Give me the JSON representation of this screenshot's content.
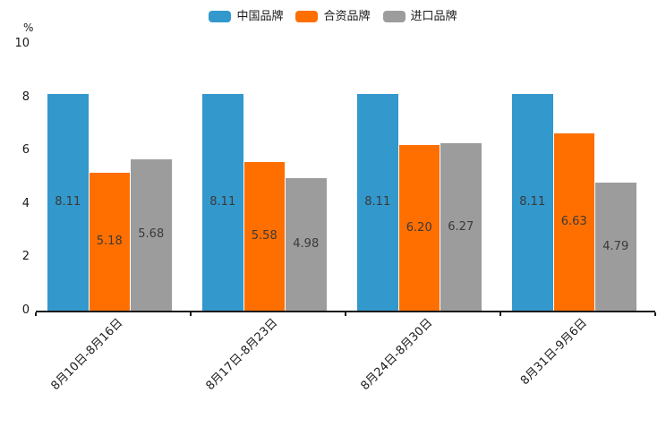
{
  "chart_data": {
    "type": "bar",
    "title": "",
    "ylabel": "%",
    "xlabel": "",
    "ylim": [
      0,
      10
    ],
    "yticks": [
      "0",
      "2",
      "4",
      "6",
      "8",
      "10"
    ],
    "grid": false,
    "legend_position": "top",
    "categories": [
      "8月10日-8月16日",
      "8月17日-8月23日",
      "8月24日-8月30日",
      "8月31日-9月6日"
    ],
    "series": [
      {
        "name": "中国品牌",
        "color": "#3398cc",
        "values": [
          8.11,
          8.11,
          8.11,
          8.11
        ],
        "labels": [
          "8.11",
          "8.11",
          "8.11",
          "8.11"
        ]
      },
      {
        "name": "合资品牌",
        "color": "#ff6f00",
        "values": [
          5.18,
          5.58,
          6.2,
          6.63
        ],
        "labels": [
          "5.18",
          "5.58",
          "6.20",
          "6.63"
        ]
      },
      {
        "name": "进口品牌",
        "color": "#9c9c9c",
        "values": [
          5.68,
          4.98,
          6.27,
          4.79
        ],
        "labels": [
          "5.68",
          "4.98",
          "6.27",
          "4.79"
        ]
      }
    ],
    "value_label_color": "#3a3a3a",
    "axis_color": "#1a1a1a"
  }
}
